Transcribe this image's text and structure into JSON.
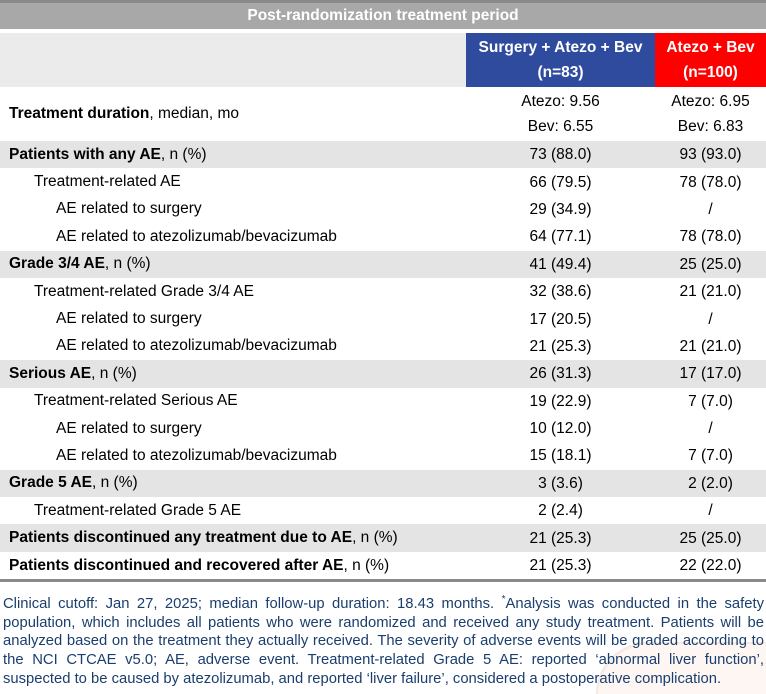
{
  "colors": {
    "title_gray": "#a8a8a8",
    "border_gray": "#8a8a8a",
    "header_left_gray": "#ebebeb",
    "header_blue": "#2e4b9e",
    "header_red": "#fe0000",
    "row_shade": "#e4e4e4",
    "footnote_navy": "#1a3e6e"
  },
  "table": {
    "title": "Post-randomization treatment period",
    "arms": [
      {
        "line1": "Surgery + Atezo + Bev",
        "line2": "(n=83)"
      },
      {
        "line1": "Atezo + Bev",
        "line2": "(n=100)"
      }
    ],
    "rows": [
      {
        "strong": "Treatment duration",
        "normal": ", median, mo",
        "indent": 0,
        "shaded": false,
        "tall": true,
        "col1": [
          "Atezo: 9.56",
          "Bev: 6.55"
        ],
        "col2": [
          "Atezo: 6.95",
          "Bev: 6.83"
        ]
      },
      {
        "strong": "Patients with any AE",
        "normal": ", n (%)",
        "indent": 0,
        "shaded": true,
        "col1": "73 (88.0)",
        "col2": "93 (93.0)"
      },
      {
        "normal": "Treatment-related AE",
        "indent": 1,
        "col1": "66 (79.5)",
        "col2": "78 (78.0)"
      },
      {
        "normal": "AE related to surgery",
        "indent": 2,
        "col1": "29 (34.9)",
        "col2": "/"
      },
      {
        "normal": "AE related to atezolizumab/bevacizumab",
        "indent": 2,
        "col1": "64 (77.1)",
        "col2": "78 (78.0)"
      },
      {
        "strong": "Grade 3/4 AE",
        "normal": ", n (%)",
        "indent": 0,
        "shaded": true,
        "col1": "41 (49.4)",
        "col2": "25 (25.0)"
      },
      {
        "normal": "Treatment-related Grade 3/4 AE",
        "indent": 1,
        "col1": "32 (38.6)",
        "col2": "21 (21.0)"
      },
      {
        "normal": "AE related to surgery",
        "indent": 2,
        "col1": "17 (20.5)",
        "col2": "/"
      },
      {
        "normal": "AE related to atezolizumab/bevacizumab",
        "indent": 2,
        "col1": "21 (25.3)",
        "col2": "21 (21.0)"
      },
      {
        "strong": "Serious AE",
        "normal": ", n (%)",
        "indent": 0,
        "shaded": true,
        "col1": "26 (31.3)",
        "col2": "17 (17.0)"
      },
      {
        "normal": "Treatment-related Serious AE",
        "indent": 1,
        "col1": "19 (22.9)",
        "col2": "7 (7.0)"
      },
      {
        "normal": "AE related to surgery",
        "indent": 2,
        "col1": "10 (12.0)",
        "col2": "/"
      },
      {
        "normal": "AE related to atezolizumab/bevacizumab",
        "indent": 2,
        "col1": "15 (18.1)",
        "col2": "7 (7.0)"
      },
      {
        "strong": "Grade 5 AE",
        "normal": ", n (%)",
        "indent": 0,
        "shaded": true,
        "col1": "3 (3.6)",
        "col2": "2 (2.0)"
      },
      {
        "normal": "Treatment-related Grade 5 AE",
        "indent": 1,
        "col1": "2 (2.4)",
        "col2": "/"
      },
      {
        "strong": "Patients discontinued any treatment due to AE",
        "normal": ", n (%)",
        "indent": 0,
        "shaded": true,
        "col1": "21 (25.3)",
        "col2": "25 (25.0)"
      },
      {
        "strong": "Patients discontinued and recovered after AE",
        "normal": ", n (%)",
        "indent": 0,
        "shaded": false,
        "col1": "21 (25.3)",
        "col2": "22 (22.0)"
      }
    ]
  },
  "footnote": {
    "pre": "Clinical cutoff: Jan 27, 2025; median follow-up duration: 18.43 months. ",
    "marker": "*",
    "post": "Analysis was conducted in the safety population, which includes all patients who were randomized and received any study treatment. Patients will be analyzed based on the treatment they actually received. The severity of adverse events will be graded according to the NCI CTCAE v5.0; AE, adverse event. Treatment-related Grade 5 AE: reported ‘abnormal liver function’, suspected to be caused by atezolizumab, and reported ‘liver failure’, considered a postoperative complication."
  }
}
